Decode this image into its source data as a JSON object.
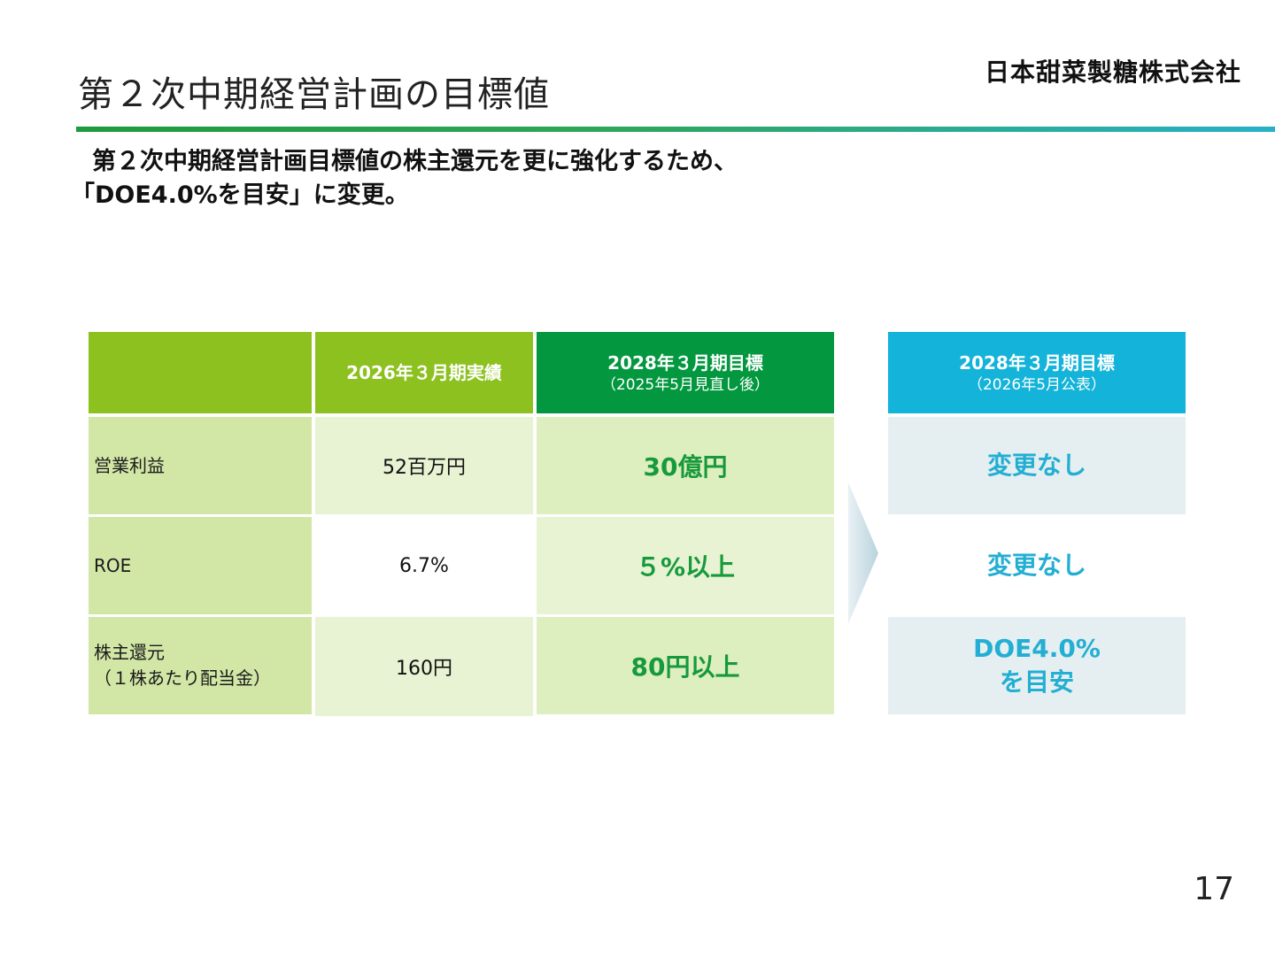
{
  "header": {
    "title": "第２次中期経営計画の目標値",
    "company": "日本甜菜製糖株式会社"
  },
  "lead": {
    "line1": "第２次中期経営計画目標値の株主還元を更に強化するため、",
    "line2": "「DOE4.0%を目安」に変更。"
  },
  "table": {
    "col_actual": "2026年３月期実績",
    "col_target": "2028年３月期目標",
    "col_target_note": "（2025年5月見直し後）",
    "col_new": "2028年３月期目標",
    "col_new_note": "（2026年5月公表）",
    "rows": [
      {
        "label": "営業利益",
        "label2": "",
        "actual": "52百万円",
        "target": "30億円",
        "new": "変更なし",
        "new2": ""
      },
      {
        "label": "ROE",
        "label2": "",
        "actual": "6.7%",
        "target": "５%以上",
        "new": "変更なし",
        "new2": ""
      },
      {
        "label": "株主還元",
        "label2": "（１株あたり配当金）",
        "actual": "160円",
        "target": "80円以上",
        "new": "DOE4.0%",
        "new2": "を目安"
      }
    ]
  },
  "colors": {
    "lime": "#8cc11f",
    "green": "#03983f",
    "cyan": "#14b3d9",
    "label_bg": "#d2e6a6",
    "target_bg": "#ddeebf",
    "actual_bg": "#e8f3d3",
    "new_bg": "#e5eff1"
  },
  "footer": {
    "page": "17"
  }
}
